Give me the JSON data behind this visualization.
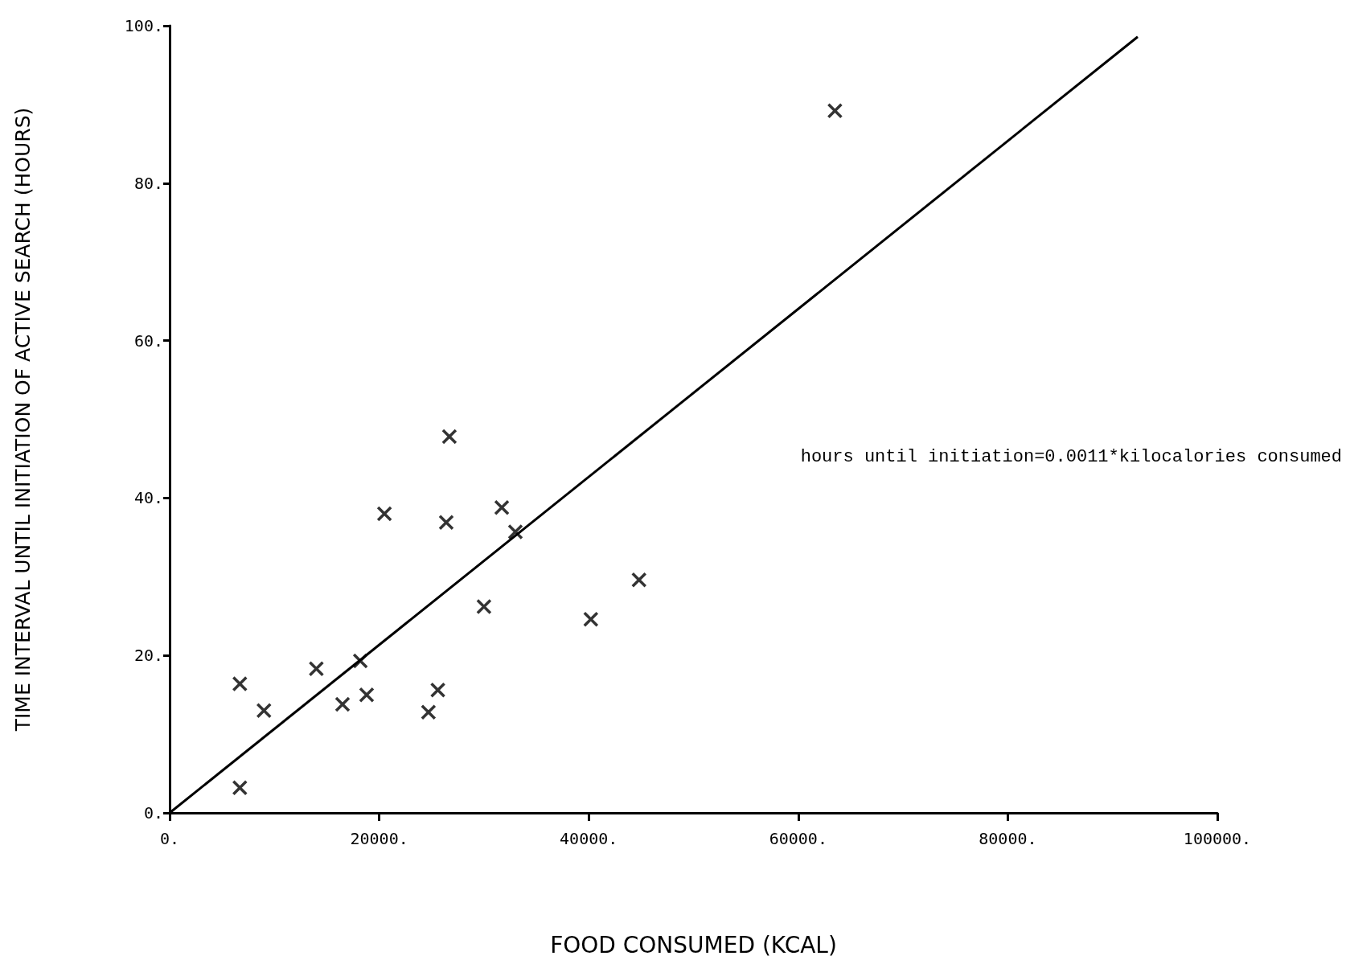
{
  "chart_data": {
    "type": "scatter",
    "xlabel": "FOOD CONSUMED (KCAL)",
    "ylabel": "TIME INTERVAL UNTIL INITIATION OF ACTIVE SEARCH (HOURS)",
    "xlim": [
      0,
      100000
    ],
    "xticks": [
      {
        "value": 0,
        "label": "0."
      },
      {
        "value": 20000,
        "label": "20000."
      },
      {
        "value": 40000,
        "label": "40000."
      },
      {
        "value": 60000,
        "label": "60000."
      },
      {
        "value": 80000,
        "label": "80000."
      },
      {
        "value": 100000,
        "label": "100000."
      }
    ],
    "ylim": [
      0,
      100
    ],
    "yticks": [
      {
        "value": 0,
        "label": "0."
      },
      {
        "value": 20,
        "label": "20."
      },
      {
        "value": 40,
        "label": "40."
      },
      {
        "value": 60,
        "label": "60."
      },
      {
        "value": 80,
        "label": "80."
      },
      {
        "value": 100,
        "label": "100."
      }
    ],
    "grid": false,
    "annotations": [
      "hours until initiation=0.0011*kilocalories consumed"
    ],
    "series": [
      {
        "color": "#000000",
        "marker": "cross",
        "x": [
          6700,
          6700,
          9000,
          14000,
          16500,
          18200,
          18800,
          20500,
          24700,
          25600,
          26400,
          26700,
          30000,
          31700,
          33000,
          40200,
          44800,
          63500
        ],
        "values": [
          16.4,
          3.2,
          13,
          18.3,
          13.8,
          19.3,
          15,
          38,
          12.8,
          15.6,
          36.9,
          47.8,
          26.2,
          38.8,
          35.7,
          24.6,
          29.6,
          89.2
        ]
      },
      {
        "type": "line",
        "color": "#000000",
        "marker": "none",
        "line_style": "solid",
        "x": [
          0,
          92400
        ],
        "values": [
          0,
          98.6
        ]
      }
    ]
  }
}
